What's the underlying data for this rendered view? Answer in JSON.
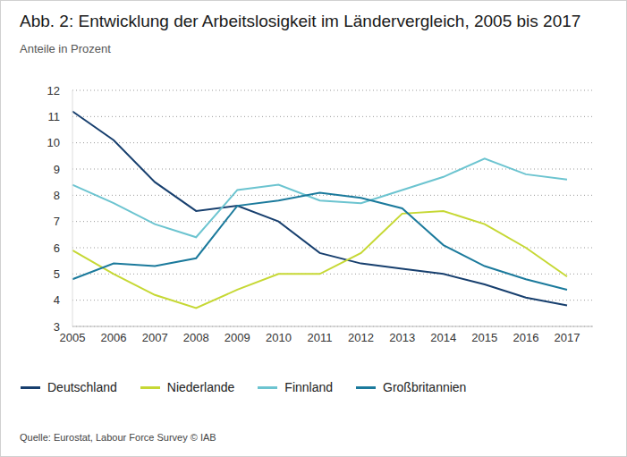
{
  "chart_data": {
    "type": "line",
    "title": "Abb. 2: Entwicklung der Arbeitslosigkeit im Ländervergleich, 2005 bis 2017",
    "subtitle": "Anteile in Prozent",
    "source": "Quelle: Eurostat, Labour Force Survey © IAB",
    "categories": [
      "2005",
      "2006",
      "2007",
      "2008",
      "2009",
      "2010",
      "2011",
      "2012",
      "2013",
      "2014",
      "2015",
      "2016",
      "2017"
    ],
    "series": [
      {
        "name": "Deutschland",
        "color": "#173f6e",
        "values": [
          11.2,
          10.1,
          8.5,
          7.4,
          7.6,
          7.0,
          5.8,
          5.4,
          5.2,
          5.0,
          4.6,
          4.1,
          3.8
        ]
      },
      {
        "name": "Niederlande",
        "color": "#c6d834",
        "values": [
          5.9,
          5.0,
          4.2,
          3.7,
          4.4,
          5.0,
          5.0,
          5.8,
          7.3,
          7.4,
          6.9,
          6.0,
          4.9
        ]
      },
      {
        "name": "Finnland",
        "color": "#6cc4d0",
        "values": [
          8.4,
          7.7,
          6.9,
          6.4,
          8.2,
          8.4,
          7.8,
          7.7,
          8.2,
          8.7,
          9.4,
          8.8,
          8.6
        ]
      },
      {
        "name": "Großbritannien",
        "color": "#1b7a9c",
        "values": [
          4.8,
          5.4,
          5.3,
          5.6,
          7.6,
          7.8,
          8.1,
          7.9,
          7.5,
          6.1,
          5.3,
          4.8,
          4.4
        ]
      }
    ],
    "ylim": [
      3,
      12
    ],
    "yticks": [
      3,
      4,
      5,
      6,
      7,
      8,
      9,
      10,
      11,
      12
    ],
    "grid": true,
    "legend": "bottom"
  }
}
